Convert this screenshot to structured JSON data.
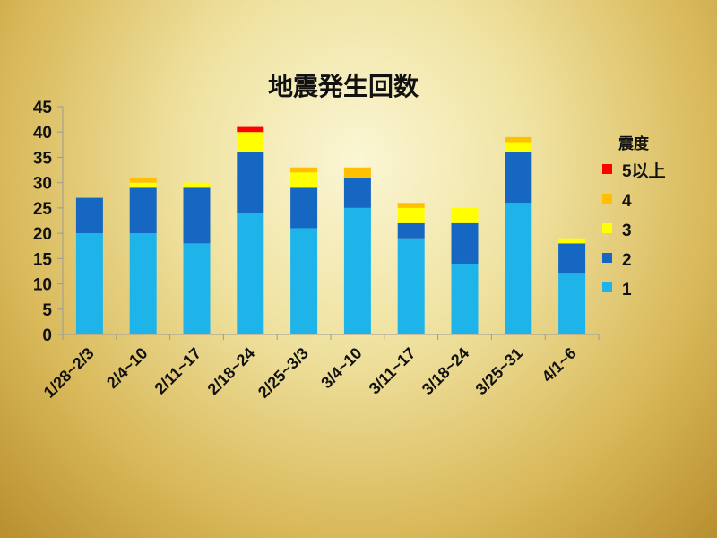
{
  "chart_data": {
    "type": "bar",
    "stacked": true,
    "title": "地震発生回数",
    "xlabel": "",
    "ylabel": "",
    "ylim": [
      0,
      45
    ],
    "yticks": [
      0,
      5,
      10,
      15,
      20,
      25,
      30,
      35,
      40,
      45
    ],
    "grid": false,
    "legend_placement": "right",
    "legend_title": "震度",
    "categories": [
      "1/28~2/3",
      "2/4~10",
      "2/11~17",
      "2/18~24",
      "2/25~3/3",
      "3/4~10",
      "3/11~17",
      "3/18~24",
      "3/25~31",
      "4/1~6"
    ],
    "series": [
      {
        "name": "1",
        "color": "#1eb4ea",
        "values": [
          20,
          20,
          18,
          24,
          21,
          25,
          19,
          14,
          26,
          12
        ]
      },
      {
        "name": "2",
        "color": "#1667c1",
        "values": [
          7,
          9,
          11,
          12,
          8,
          6,
          3,
          8,
          10,
          6
        ]
      },
      {
        "name": "3",
        "color": "#ffff00",
        "values": [
          0,
          1,
          1,
          4,
          3,
          0,
          3,
          3,
          2,
          1
        ]
      },
      {
        "name": "4",
        "color": "#ffc000",
        "values": [
          0,
          1,
          0,
          0,
          1,
          2,
          1,
          0,
          1,
          0
        ]
      },
      {
        "name": "5以上",
        "color": "#ff0000",
        "values": [
          0,
          0,
          0,
          1,
          0,
          0,
          0,
          0,
          0,
          0
        ]
      }
    ]
  }
}
